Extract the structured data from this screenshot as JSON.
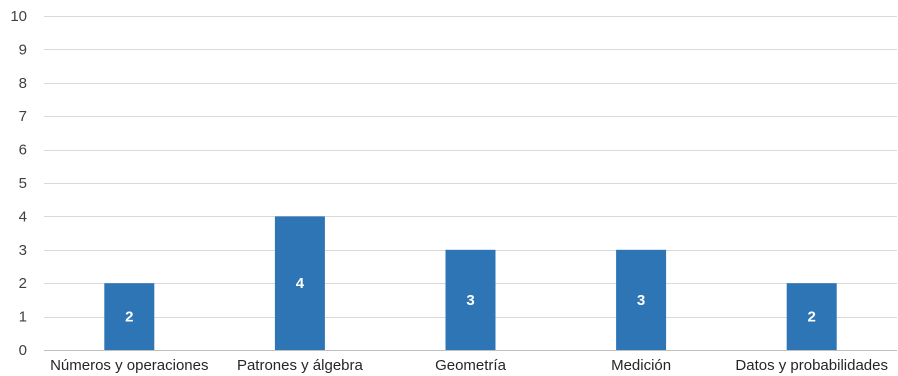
{
  "chart_data": {
    "type": "bar",
    "title": "",
    "xlabel": "",
    "ylabel": "",
    "categories": [
      "Números y operaciones",
      "Patrones y álgebra",
      "Geometría",
      "Medición",
      "Datos y probabilidades"
    ],
    "values": [
      2,
      4,
      3,
      3,
      2
    ],
    "ylim": [
      0,
      10
    ],
    "yticks": [
      0,
      1,
      2,
      3,
      4,
      5,
      6,
      7,
      8,
      9,
      10
    ],
    "grid": true,
    "legend": "none",
    "data_labels": true,
    "bar_color": "#2e75b6",
    "grid_color": "#d9d9d9",
    "label_color": "#ffffff"
  }
}
